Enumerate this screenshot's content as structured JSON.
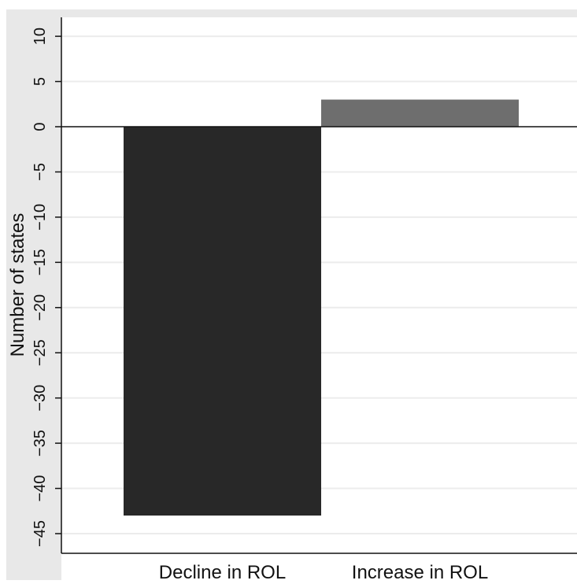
{
  "chart_data": {
    "type": "bar",
    "categories": [
      "Decline in ROL",
      "Increase in ROL"
    ],
    "values": [
      -43,
      3
    ],
    "ylabel": "Number of states",
    "xlabel": "",
    "ylim": [
      -47.5,
      12.5
    ],
    "yticks": [
      10,
      5,
      0,
      -5,
      -10,
      -15,
      -20,
      -25,
      -30,
      -35,
      -40,
      -45
    ],
    "ytick_labels": [
      "10",
      "5",
      "0",
      "−5",
      "−10",
      "−15",
      "−20",
      "−25",
      "−30",
      "−35",
      "−40",
      "−45"
    ],
    "grid": true,
    "bar_colors": [
      "#282828",
      "#6e6e6e"
    ],
    "colors": {
      "frame_background": "#e8e8e8",
      "plot_background": "#ffffff",
      "gridline": "#ececec",
      "axis": "#111111",
      "zero_line": "#111111"
    }
  }
}
